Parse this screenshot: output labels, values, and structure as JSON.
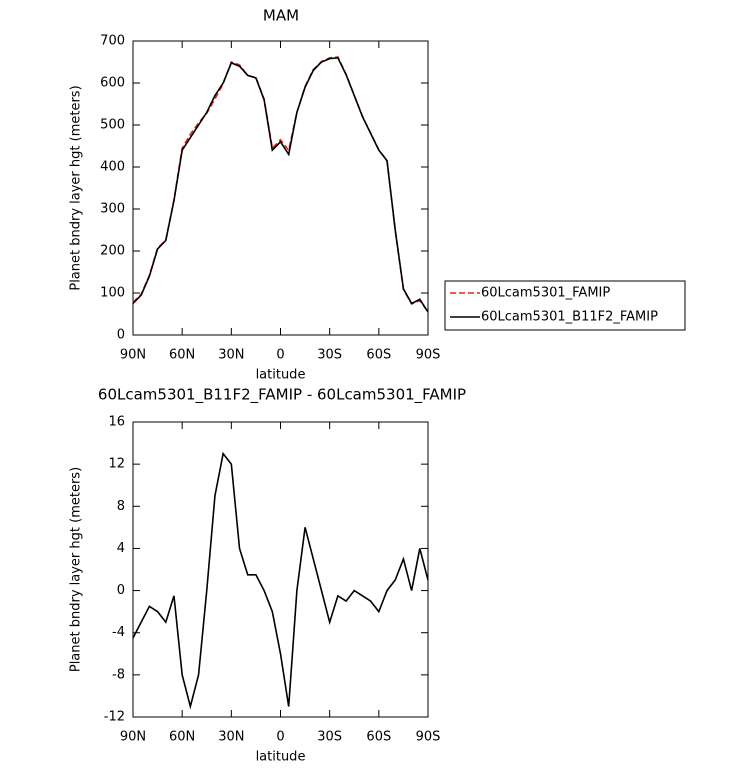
{
  "chart_data": [
    {
      "type": "line",
      "title": "MAM",
      "x_label": "latitude",
      "y_label": "Planet bndry layer hgt (meters)",
      "x": [
        90,
        85,
        80,
        75,
        70,
        65,
        60,
        55,
        50,
        45,
        40,
        35,
        30,
        25,
        20,
        15,
        10,
        5,
        0,
        -5,
        -10,
        -15,
        -20,
        -25,
        -30,
        -35,
        -40,
        -45,
        -50,
        -55,
        -60,
        -65,
        -70,
        -75,
        -80,
        -85,
        -90
      ],
      "series": [
        {
          "name": "60Lcam5301_FAMIP",
          "color": "#e8261c",
          "dashed": true,
          "values": [
            78,
            97,
            142,
            207,
            226,
            322,
            445,
            478,
            505,
            528,
            562,
            598,
            650,
            643,
            618,
            613,
            562,
            445,
            465,
            440,
            530,
            592,
            632,
            651,
            660,
            662,
            621,
            571,
            521,
            481,
            441,
            415,
            250,
            108,
            74,
            82,
            55
          ]
        },
        {
          "name": "60Lcam5301_B11F2_FAMIP",
          "color": "#000000",
          "dashed": false,
          "values": [
            75,
            95,
            140,
            205,
            225,
            320,
            440,
            470,
            500,
            530,
            570,
            600,
            648,
            640,
            618,
            612,
            560,
            440,
            460,
            430,
            530,
            590,
            630,
            650,
            658,
            660,
            620,
            570,
            520,
            480,
            440,
            415,
            250,
            110,
            75,
            85,
            55
          ]
        }
      ],
      "xlim": [
        90,
        -90
      ],
      "xticks": [
        {
          "value": 90,
          "label": "90N"
        },
        {
          "value": 60,
          "label": "60N"
        },
        {
          "value": 30,
          "label": "30N"
        },
        {
          "value": 0,
          "label": "0"
        },
        {
          "value": -30,
          "label": "30S"
        },
        {
          "value": -60,
          "label": "60S"
        },
        {
          "value": -90,
          "label": "90S"
        }
      ],
      "ylim": [
        0,
        700
      ],
      "yticks": [
        0,
        100,
        200,
        300,
        400,
        500,
        600,
        700
      ],
      "legend": "right"
    },
    {
      "type": "line",
      "title": "60Lcam5301_B11F2_FAMIP - 60Lcam5301_FAMIP",
      "x_label": "latitude",
      "y_label": "Planet bndry layer hgt (meters)",
      "x": [
        90,
        85,
        80,
        75,
        70,
        65,
        60,
        55,
        50,
        45,
        40,
        35,
        30,
        25,
        20,
        15,
        10,
        5,
        0,
        -5,
        -10,
        -15,
        -20,
        -25,
        -30,
        -35,
        -40,
        -45,
        -50,
        -55,
        -60,
        -65,
        -70,
        -75,
        -80,
        -85,
        -90
      ],
      "series": [
        {
          "color": "#000000",
          "dashed": false,
          "values": [
            -4.5,
            -3,
            -1.5,
            -2,
            -3,
            -0.5,
            -8,
            -11,
            -8,
            0,
            9,
            13,
            12,
            4,
            1.5,
            1.5,
            0,
            -2,
            -6,
            -11,
            0,
            6,
            3,
            0,
            -3,
            -0.5,
            -1,
            0,
            -0.5,
            -1,
            -2,
            0,
            1,
            3,
            0,
            4,
            1
          ]
        }
      ],
      "xlim": [
        90,
        -90
      ],
      "xticks": [
        {
          "value": 90,
          "label": "90N"
        },
        {
          "value": 60,
          "label": "60N"
        },
        {
          "value": 30,
          "label": "30N"
        },
        {
          "value": 0,
          "label": "0"
        },
        {
          "value": -30,
          "label": "30S"
        },
        {
          "value": -60,
          "label": "60S"
        },
        {
          "value": -90,
          "label": "90S"
        }
      ],
      "ylim": [
        -12,
        16
      ],
      "yticks": [
        -12,
        -8,
        -4,
        0,
        4,
        8,
        12,
        16
      ]
    }
  ]
}
